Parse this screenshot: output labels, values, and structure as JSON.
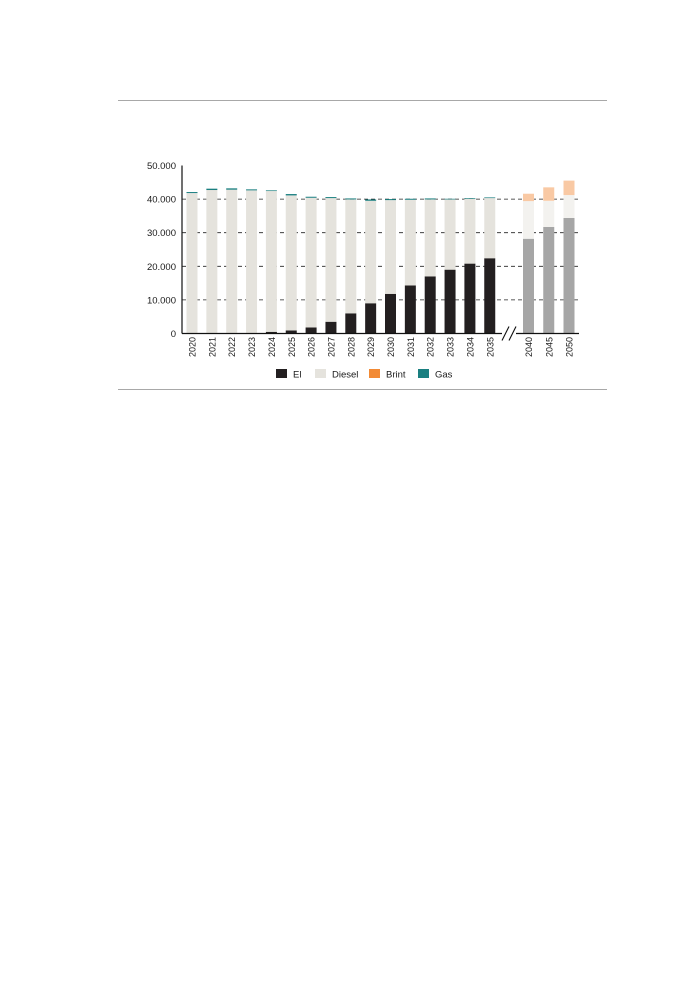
{
  "chart_data": {
    "type": "bar",
    "stacked": true,
    "title": "",
    "xlabel": "",
    "ylabel": "",
    "ylim": [
      0,
      50000
    ],
    "yticks": [
      {
        "value": 0,
        "label": "0"
      },
      {
        "value": 10000,
        "label": "10.000"
      },
      {
        "value": 20000,
        "label": "20.000"
      },
      {
        "value": 30000,
        "label": "30.000"
      },
      {
        "value": 40000,
        "label": "40.000"
      },
      {
        "value": 50000,
        "label": "50.000"
      }
    ],
    "grid": "dashed horizontal",
    "axis_break_between": [
      "2035",
      "2040"
    ],
    "categories": [
      "2020",
      "2021",
      "2022",
      "2023",
      "2024",
      "2025",
      "2026",
      "2027",
      "2028",
      "2029",
      "2030",
      "2031",
      "2032",
      "2033",
      "2034",
      "2035",
      "2040",
      "2045",
      "2050"
    ],
    "faded_categories": [
      "2040",
      "2045",
      "2050"
    ],
    "series": [
      {
        "name": "El",
        "color": "#231f20",
        "faded_color": "#a6a6a6",
        "values": [
          0,
          0,
          0,
          0,
          500,
          900,
          1800,
          3500,
          6000,
          9000,
          11800,
          14300,
          17000,
          19000,
          20800,
          22400,
          28200,
          31700,
          34400
        ]
      },
      {
        "name": "Diesel",
        "color": "#e5e3dd",
        "faded_color": "#f3f2ef",
        "values": [
          41800,
          42700,
          42800,
          42600,
          41900,
          40200,
          38600,
          36800,
          33900,
          30500,
          27900,
          25500,
          22900,
          20900,
          19300,
          17900,
          11200,
          7800,
          6800
        ]
      },
      {
        "name": "Brint",
        "color": "#f28a35",
        "faded_color": "#f9c9a4",
        "values": [
          0,
          0,
          0,
          0,
          0,
          0,
          0,
          0,
          0,
          0,
          0,
          0,
          0,
          0,
          0,
          0,
          2200,
          4000,
          4300
        ]
      },
      {
        "name": "Gas",
        "color": "#1a7f80",
        "faded_color": "#8cbfbf",
        "values": [
          300,
          400,
          400,
          300,
          200,
          400,
          300,
          300,
          300,
          400,
          300,
          300,
          300,
          200,
          200,
          200,
          0,
          0,
          0
        ]
      }
    ],
    "legend": {
      "placement": "bottom-center",
      "items": [
        "El",
        "Diesel",
        "Brint",
        "Gas"
      ]
    }
  }
}
